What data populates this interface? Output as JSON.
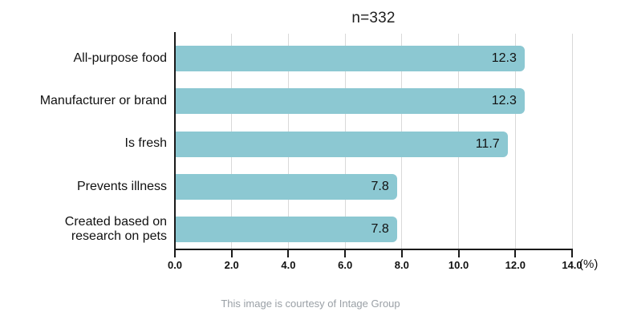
{
  "chart_data": {
    "type": "bar",
    "orientation": "horizontal",
    "title": "n=332",
    "categories": [
      "All-purpose food",
      "Manufacturer or brand",
      "Is fresh",
      "Prevents illness",
      "Created based on research on pets"
    ],
    "values": [
      12.3,
      12.3,
      11.7,
      7.8,
      7.8
    ],
    "value_labels": [
      "12.3",
      "12.3",
      "11.7",
      "7.8",
      "7.8"
    ],
    "xlabel": "(%)",
    "xlim": [
      0,
      14
    ],
    "xticks": [
      "0.0",
      "2.0",
      "4.0",
      "6.0",
      "8.0",
      "10.0",
      "12.0",
      "14.0"
    ],
    "xtick_step": 2,
    "grid": true,
    "legend": false,
    "bar_color": "#8cc8d2",
    "gridline_color": "#d9d9d9",
    "axis_color": "#1a1a1a",
    "text_color": "#111111"
  },
  "footer": {
    "text": "This image is courtesy of Intage Group"
  }
}
